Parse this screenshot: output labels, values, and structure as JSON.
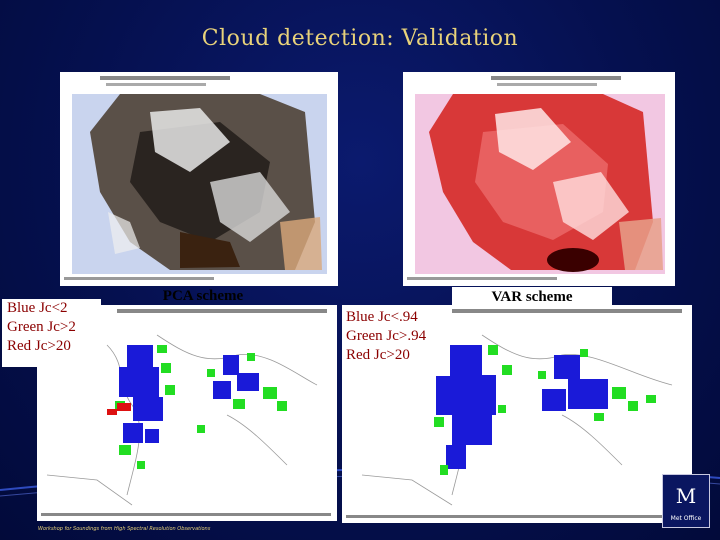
{
  "slide": {
    "title": "Cloud detection: Validation",
    "footer": "Workshop for Soundings from High Spectral Resolution Observations"
  },
  "left_label": {
    "line1": "Blue Jc<2",
    "line2": "Green Jc>2",
    "line3": "Red Jc>20"
  },
  "right_label": {
    "line1": "Blue Jc<.94",
    "line2": "Green Jc>.94",
    "line3": "Red Jc>20"
  },
  "schemes": {
    "left": "PCA scheme",
    "right": "VAR scheme"
  },
  "logo": {
    "text": "Met Office"
  },
  "colors": {
    "background": "#05104f",
    "title": "#e8d27a",
    "label_text": "#8b0000",
    "cloud_blue": "#1a1ad8",
    "cloud_green": "#22dd22",
    "cloud_red": "#dd1111"
  }
}
